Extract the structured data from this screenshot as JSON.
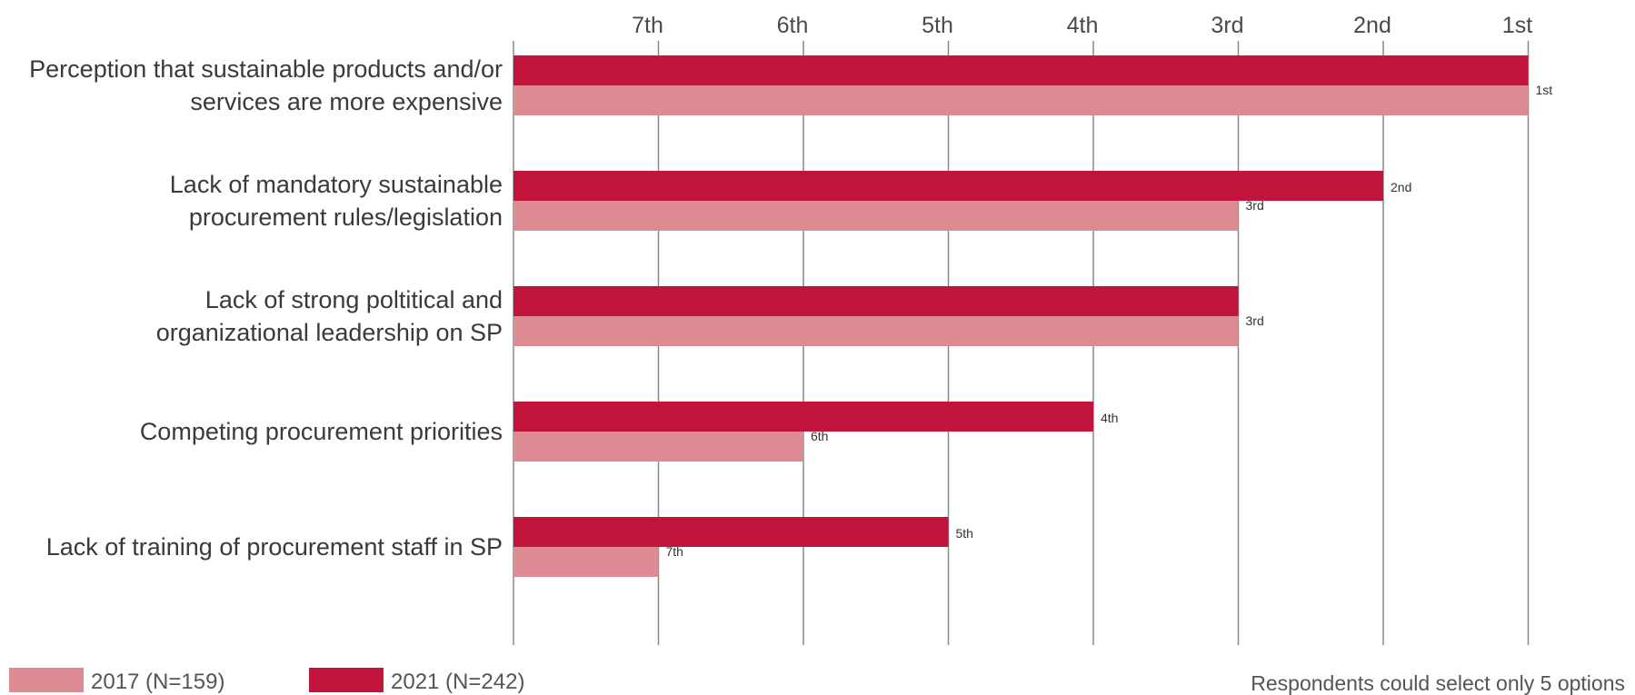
{
  "chart_data": {
    "type": "bar",
    "orientation": "horizontal",
    "categories": [
      [
        "Perception that sustainable products and/or",
        "services are more expensive"
      ],
      [
        "Lack of mandatory sustainable",
        "procurement rules/legislation"
      ],
      [
        "Lack of strong poltitical and",
        "organizational leadership on SP"
      ],
      [
        "Competing procurement priorities"
      ],
      [
        "Lack of training of procurement staff in SP"
      ]
    ],
    "x_ticks": [
      "7th",
      "6th",
      "5th",
      "4th",
      "3rd",
      "2nd",
      "1st"
    ],
    "series": [
      {
        "name": "2021 (N=242)",
        "color": "#c0143c",
        "values": [
          1,
          2,
          3,
          4,
          5
        ],
        "labels": [
          "",
          "2nd",
          "",
          "4th",
          "5th"
        ]
      },
      {
        "name": "2017 (N=159)",
        "color": "#de8a93",
        "values": [
          1,
          3,
          3,
          6,
          7
        ],
        "labels": [
          "1st",
          "3rd",
          "3rd",
          "6th",
          "7th"
        ]
      }
    ],
    "legend_order": [
      "2017 (N=159)",
      "2021 (N=242)"
    ],
    "legend_position": "bottom-left",
    "grid": true,
    "x_reversed": true,
    "xlim": [
      8,
      1
    ]
  },
  "note": "Respondents could select only 5 options"
}
